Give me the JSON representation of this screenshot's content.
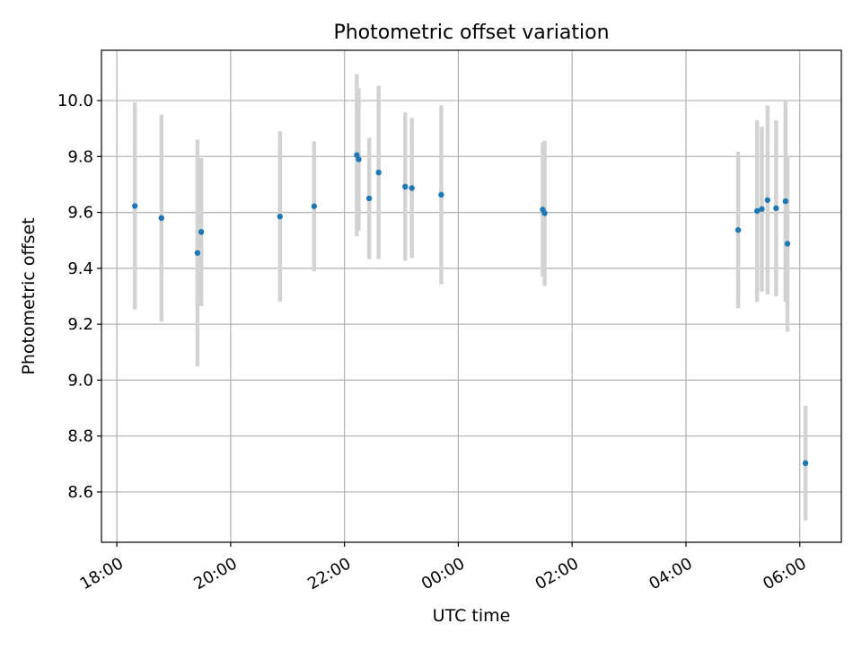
{
  "chart_data": {
    "type": "scatter",
    "title": "Photometric offset variation",
    "xlabel": "UTC time",
    "ylabel": "Photometric offset",
    "x_tick_labels": [
      "18:00",
      "20:00",
      "22:00",
      "00:00",
      "02:00",
      "04:00",
      "06:00"
    ],
    "y_tick_labels": [
      "8.6",
      "8.8",
      "9.0",
      "9.2",
      "9.4",
      "9.6",
      "9.8",
      "10.0"
    ],
    "x_range_hours": [
      17.73,
      30.73
    ],
    "ylim": [
      8.42,
      10.18
    ],
    "grid": true,
    "point_color": "#1f77b4",
    "errorbar_color": "#d3d3d3",
    "points": [
      {
        "t": "18:19",
        "y": 9.623,
        "err": 0.37
      },
      {
        "t": "18:47",
        "y": 9.58,
        "err": 0.37
      },
      {
        "t": "19:25",
        "y": 9.455,
        "err": 0.405
      },
      {
        "t": "19:29",
        "y": 9.53,
        "err": 0.265
      },
      {
        "t": "20:52",
        "y": 9.585,
        "err": 0.305
      },
      {
        "t": "21:28",
        "y": 9.622,
        "err": 0.232
      },
      {
        "t": "22:13",
        "y": 9.805,
        "err": 0.29
      },
      {
        "t": "22:15",
        "y": 9.79,
        "err": 0.255
      },
      {
        "t": "22:26",
        "y": 9.65,
        "err": 0.217
      },
      {
        "t": "22:36",
        "y": 9.743,
        "err": 0.31
      },
      {
        "t": "23:04",
        "y": 9.692,
        "err": 0.265
      },
      {
        "t": "23:11",
        "y": 9.687,
        "err": 0.25
      },
      {
        "t": "23:42",
        "y": 9.663,
        "err": 0.32
      },
      {
        "t": "01:29",
        "y": 9.61,
        "err": 0.24
      },
      {
        "t": "01:31",
        "y": 9.597,
        "err": 0.26
      },
      {
        "t": "04:55",
        "y": 9.537,
        "err": 0.28
      },
      {
        "t": "05:15",
        "y": 9.605,
        "err": 0.325
      },
      {
        "t": "05:20",
        "y": 9.612,
        "err": 0.295
      },
      {
        "t": "05:26",
        "y": 9.644,
        "err": 0.338
      },
      {
        "t": "05:35",
        "y": 9.615,
        "err": 0.315
      },
      {
        "t": "05:45",
        "y": 9.64,
        "err": 0.36
      },
      {
        "t": "05:47",
        "y": 9.488,
        "err": 0.315
      },
      {
        "t": "06:06",
        "y": 8.703,
        "err": 0.205
      }
    ]
  }
}
